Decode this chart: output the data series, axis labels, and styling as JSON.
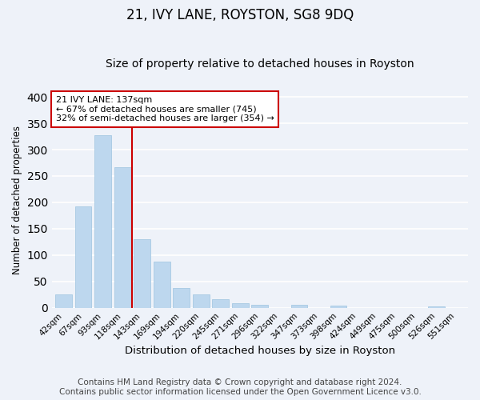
{
  "title": "21, IVY LANE, ROYSTON, SG8 9DQ",
  "subtitle": "Size of property relative to detached houses in Royston",
  "xlabel": "Distribution of detached houses by size in Royston",
  "ylabel": "Number of detached properties",
  "categories": [
    "42sqm",
    "67sqm",
    "93sqm",
    "118sqm",
    "143sqm",
    "169sqm",
    "194sqm",
    "220sqm",
    "245sqm",
    "271sqm",
    "296sqm",
    "322sqm",
    "347sqm",
    "373sqm",
    "398sqm",
    "424sqm",
    "449sqm",
    "475sqm",
    "500sqm",
    "526sqm",
    "551sqm"
  ],
  "values": [
    25,
    193,
    328,
    267,
    130,
    87,
    38,
    26,
    17,
    8,
    5,
    0,
    5,
    0,
    4,
    0,
    0,
    0,
    0,
    3,
    0
  ],
  "bar_color": "#bdd7ee",
  "bar_edgecolor": "#9dc3e0",
  "vline_color": "#cc0000",
  "annotation_text": "21 IVY LANE: 137sqm\n← 67% of detached houses are smaller (745)\n32% of semi-detached houses are larger (354) →",
  "annotation_box_edgecolor": "#cc0000",
  "annotation_box_facecolor": "#ffffff",
  "ylim": [
    0,
    410
  ],
  "footer1": "Contains HM Land Registry data © Crown copyright and database right 2024.",
  "footer2": "Contains public sector information licensed under the Open Government Licence v3.0.",
  "bg_color": "#eef2f9",
  "plot_bg_color": "#eef2f9",
  "grid_color": "#ffffff",
  "title_fontsize": 12,
  "subtitle_fontsize": 10,
  "xlabel_fontsize": 9.5,
  "ylabel_fontsize": 8.5,
  "tick_fontsize": 7.5,
  "footer_fontsize": 7.5
}
